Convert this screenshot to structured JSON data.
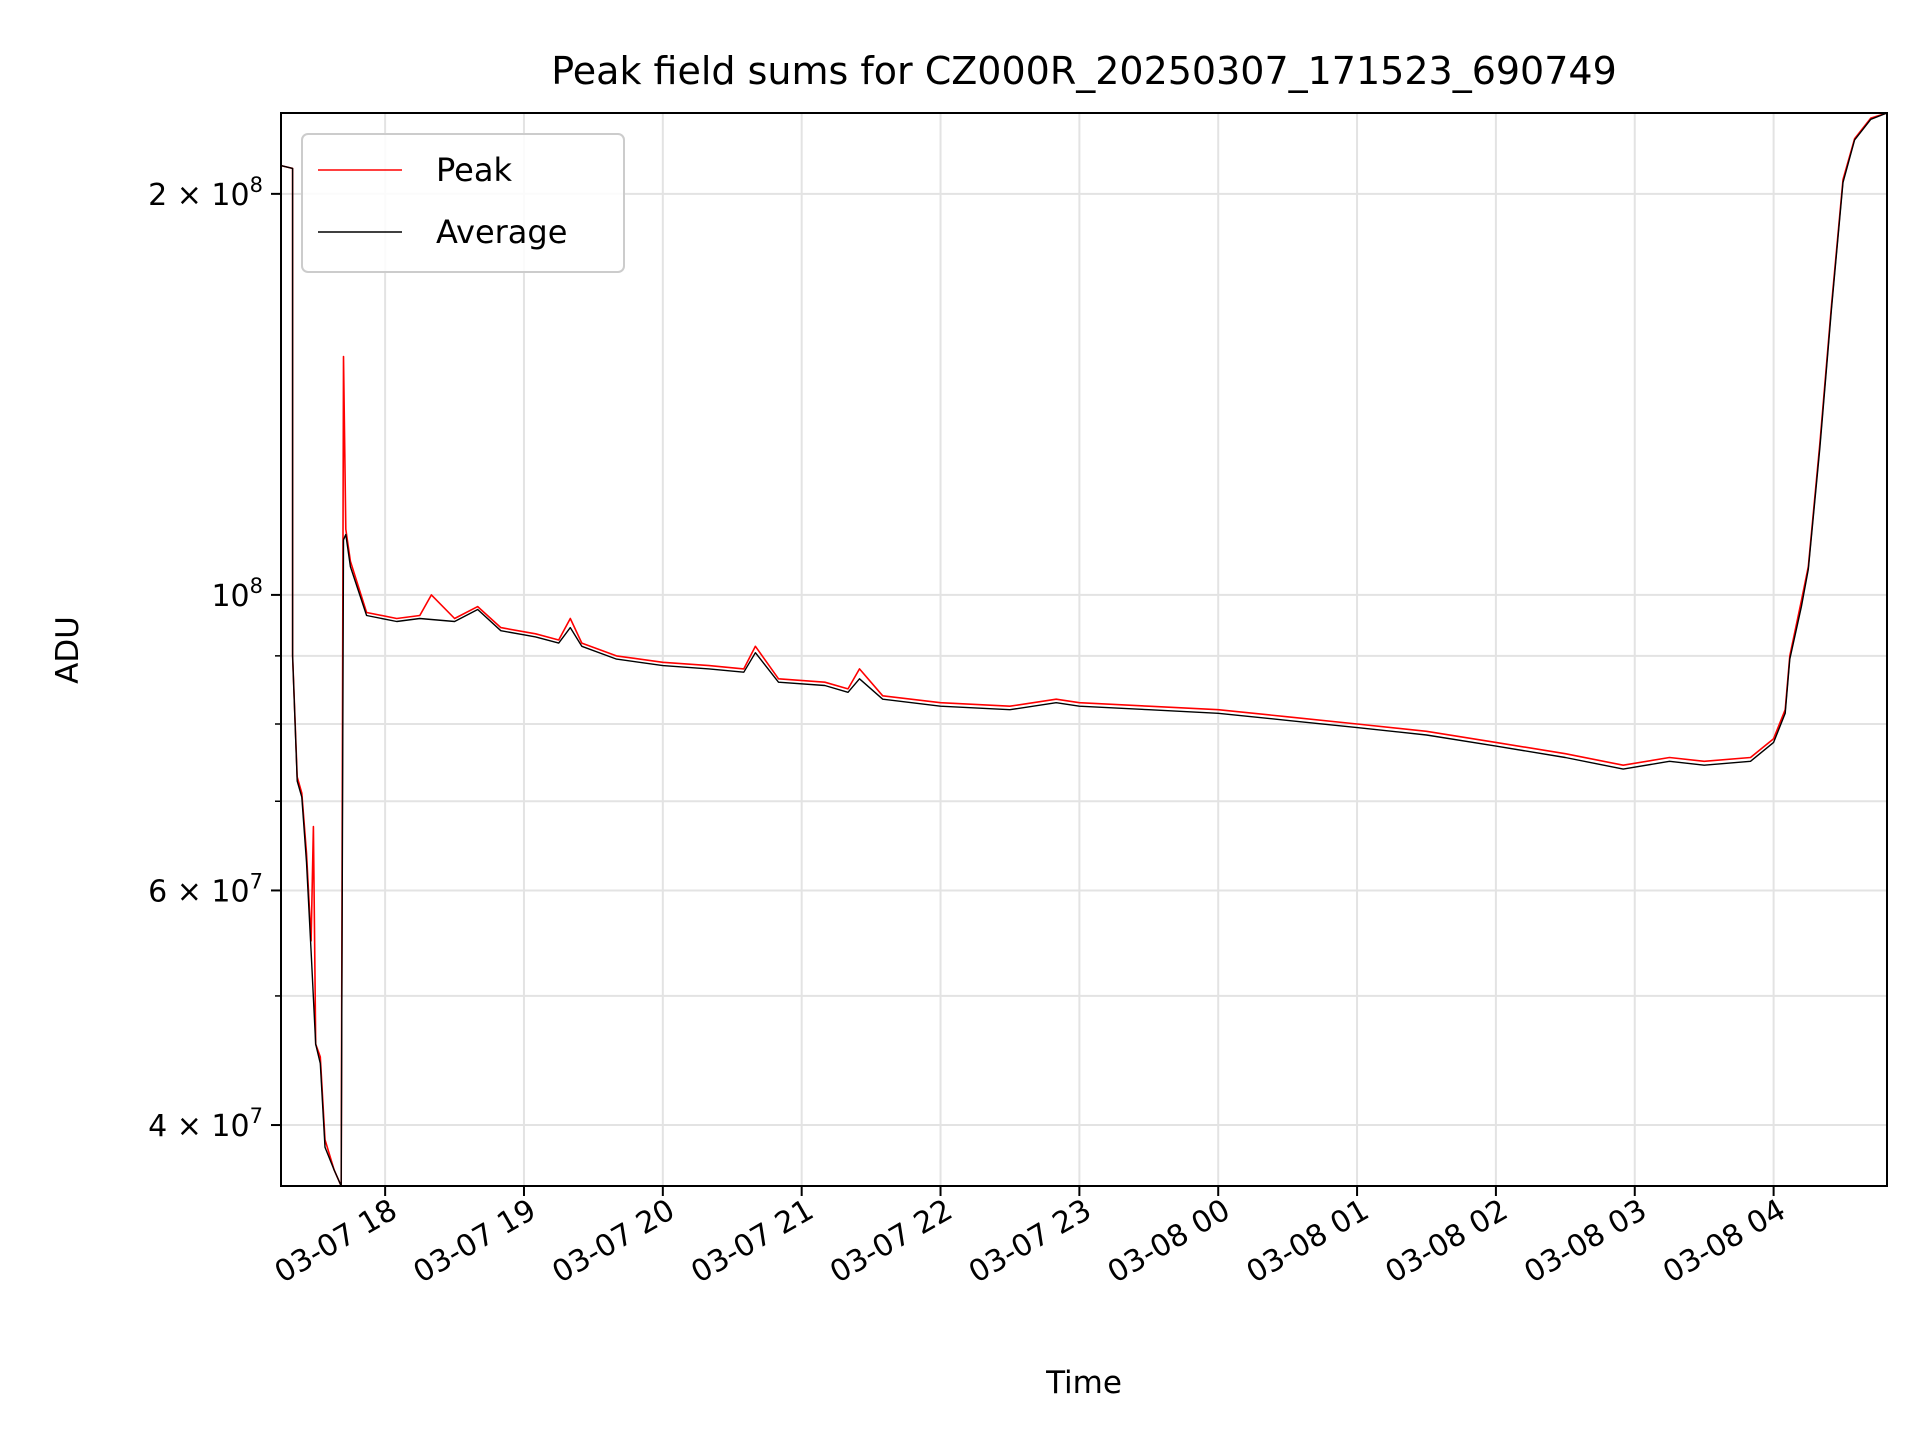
{
  "chart_data": {
    "type": "line",
    "title": "Peak field sums for CZ000R_20250307_171523_690749",
    "xlabel": "Time",
    "ylabel": "ADU",
    "yscale": "log",
    "ylim": [
      36000000,
      230000000
    ],
    "xlim": [
      "2025-03-07 17:15",
      "2025-03-08 04:49"
    ],
    "grid": true,
    "legend_position": "top-left",
    "x_ticks": [
      "03-07 18",
      "03-07 19",
      "03-07 20",
      "03-07 21",
      "03-07 22",
      "03-07 23",
      "03-08 00",
      "03-08 01",
      "03-08 02",
      "03-08 03",
      "03-08 04"
    ],
    "y_ticks": [
      {
        "base": "4 × 10",
        "exp": "7",
        "value": 40000000
      },
      {
        "base": "6 × 10",
        "exp": "7",
        "value": 60000000
      },
      {
        "base": "10",
        "exp": "8",
        "value": 100000000
      },
      {
        "base": "2 × 10",
        "exp": "8",
        "value": 200000000
      }
    ],
    "y_minor_ticks": [
      50000000,
      70000000,
      80000000,
      90000000
    ],
    "colors": {
      "peak": "#ff0000",
      "average": "#000000"
    },
    "series": [
      {
        "name": "Peak",
        "color": "#ff0000",
        "points": [
          [
            "2025-03-07 17:15",
            210000000
          ],
          [
            "2025-03-07 17:20",
            209000000
          ],
          [
            "2025-03-07 17:20",
            90000000
          ],
          [
            "2025-03-07 17:22",
            73000000
          ],
          [
            "2025-03-07 17:24",
            71000000
          ],
          [
            "2025-03-07 17:26",
            64000000
          ],
          [
            "2025-03-07 17:28",
            55000000
          ],
          [
            "2025-03-07 17:29",
            67000000
          ],
          [
            "2025-03-07 17:30",
            46000000
          ],
          [
            "2025-03-07 17:32",
            45000000
          ],
          [
            "2025-03-07 17:34",
            39000000
          ],
          [
            "2025-03-07 17:38",
            37000000
          ],
          [
            "2025-03-07 17:41",
            36000000
          ],
          [
            "2025-03-07 17:42",
            151000000
          ],
          [
            "2025-03-07 17:43",
            112000000
          ],
          [
            "2025-03-07 17:45",
            106000000
          ],
          [
            "2025-03-07 17:52",
            97000000
          ],
          [
            "2025-03-07 18:05",
            96000000
          ],
          [
            "2025-03-07 18:15",
            96500000
          ],
          [
            "2025-03-07 18:20",
            100000000
          ],
          [
            "2025-03-07 18:30",
            96000000
          ],
          [
            "2025-03-07 18:40",
            98000000
          ],
          [
            "2025-03-07 18:50",
            94500000
          ],
          [
            "2025-03-07 19:05",
            93500000
          ],
          [
            "2025-03-07 19:15",
            92500000
          ],
          [
            "2025-03-07 19:20",
            96000000
          ],
          [
            "2025-03-07 19:25",
            92000000
          ],
          [
            "2025-03-07 19:40",
            90000000
          ],
          [
            "2025-03-07 20:00",
            89000000
          ],
          [
            "2025-03-07 20:20",
            88500000
          ],
          [
            "2025-03-07 20:35",
            88000000
          ],
          [
            "2025-03-07 20:40",
            91500000
          ],
          [
            "2025-03-07 20:50",
            86500000
          ],
          [
            "2025-03-07 21:10",
            86000000
          ],
          [
            "2025-03-07 21:20",
            85000000
          ],
          [
            "2025-03-07 21:25",
            88000000
          ],
          [
            "2025-03-07 21:35",
            84000000
          ],
          [
            "2025-03-07 22:00",
            83000000
          ],
          [
            "2025-03-07 22:30",
            82500000
          ],
          [
            "2025-03-07 22:50",
            83500000
          ],
          [
            "2025-03-07 23:00",
            83000000
          ],
          [
            "2025-03-07 23:30",
            82500000
          ],
          [
            "2025-03-08 00:00",
            82000000
          ],
          [
            "2025-03-08 00:30",
            81000000
          ],
          [
            "2025-03-08 01:00",
            80000000
          ],
          [
            "2025-03-08 01:30",
            79000000
          ],
          [
            "2025-03-08 02:00",
            77500000
          ],
          [
            "2025-03-08 02:30",
            76000000
          ],
          [
            "2025-03-08 02:55",
            74500000
          ],
          [
            "2025-03-08 03:15",
            75500000
          ],
          [
            "2025-03-08 03:30",
            75000000
          ],
          [
            "2025-03-08 03:50",
            75500000
          ],
          [
            "2025-03-08 04:00",
            78000000
          ],
          [
            "2025-03-08 04:05",
            82000000
          ],
          [
            "2025-03-08 04:07",
            90000000
          ],
          [
            "2025-03-08 04:12",
            99000000
          ],
          [
            "2025-03-08 04:15",
            105000000
          ],
          [
            "2025-03-08 04:20",
            130000000
          ],
          [
            "2025-03-08 04:25",
            165000000
          ],
          [
            "2025-03-08 04:30",
            205000000
          ],
          [
            "2025-03-08 04:35",
            220000000
          ],
          [
            "2025-03-08 04:42",
            228000000
          ],
          [
            "2025-03-08 04:49",
            230000000
          ]
        ]
      },
      {
        "name": "Average",
        "color": "#000000",
        "points": [
          [
            "2025-03-07 17:15",
            210000000
          ],
          [
            "2025-03-07 17:20",
            209000000
          ],
          [
            "2025-03-07 17:20",
            90000000
          ],
          [
            "2025-03-07 17:22",
            72500000
          ],
          [
            "2025-03-07 17:24",
            70500000
          ],
          [
            "2025-03-07 17:26",
            63000000
          ],
          [
            "2025-03-07 17:28",
            54000000
          ],
          [
            "2025-03-07 17:30",
            46000000
          ],
          [
            "2025-03-07 17:32",
            44500000
          ],
          [
            "2025-03-07 17:34",
            38500000
          ],
          [
            "2025-03-07 17:38",
            37000000
          ],
          [
            "2025-03-07 17:41",
            36000000
          ],
          [
            "2025-03-07 17:42",
            110000000
          ],
          [
            "2025-03-07 17:43",
            111000000
          ],
          [
            "2025-03-07 17:45",
            105000000
          ],
          [
            "2025-03-07 17:52",
            96500000
          ],
          [
            "2025-03-07 18:05",
            95500000
          ],
          [
            "2025-03-07 18:15",
            96000000
          ],
          [
            "2025-03-07 18:30",
            95500000
          ],
          [
            "2025-03-07 18:40",
            97500000
          ],
          [
            "2025-03-07 18:50",
            94000000
          ],
          [
            "2025-03-07 19:05",
            93000000
          ],
          [
            "2025-03-07 19:15",
            92000000
          ],
          [
            "2025-03-07 19:20",
            94500000
          ],
          [
            "2025-03-07 19:25",
            91500000
          ],
          [
            "2025-03-07 19:40",
            89500000
          ],
          [
            "2025-03-07 20:00",
            88500000
          ],
          [
            "2025-03-07 20:20",
            88000000
          ],
          [
            "2025-03-07 20:35",
            87500000
          ],
          [
            "2025-03-07 20:40",
            90500000
          ],
          [
            "2025-03-07 20:50",
            86000000
          ],
          [
            "2025-03-07 21:10",
            85500000
          ],
          [
            "2025-03-07 21:20",
            84500000
          ],
          [
            "2025-03-07 21:25",
            86500000
          ],
          [
            "2025-03-07 21:35",
            83500000
          ],
          [
            "2025-03-07 22:00",
            82500000
          ],
          [
            "2025-03-07 22:30",
            82000000
          ],
          [
            "2025-03-07 22:50",
            83000000
          ],
          [
            "2025-03-07 23:00",
            82500000
          ],
          [
            "2025-03-07 23:30",
            82000000
          ],
          [
            "2025-03-08 00:00",
            81500000
          ],
          [
            "2025-03-08 00:30",
            80500000
          ],
          [
            "2025-03-08 01:00",
            79500000
          ],
          [
            "2025-03-08 01:30",
            78500000
          ],
          [
            "2025-03-08 02:00",
            77000000
          ],
          [
            "2025-03-08 02:30",
            75500000
          ],
          [
            "2025-03-08 02:55",
            74000000
          ],
          [
            "2025-03-08 03:15",
            75000000
          ],
          [
            "2025-03-08 03:30",
            74500000
          ],
          [
            "2025-03-08 03:50",
            75000000
          ],
          [
            "2025-03-08 04:00",
            77500000
          ],
          [
            "2025-03-08 04:05",
            81500000
          ],
          [
            "2025-03-08 04:07",
            89500000
          ],
          [
            "2025-03-08 04:12",
            98000000
          ],
          [
            "2025-03-08 04:15",
            104500000
          ],
          [
            "2025-03-08 04:20",
            129000000
          ],
          [
            "2025-03-08 04:25",
            164000000
          ],
          [
            "2025-03-08 04:30",
            204000000
          ],
          [
            "2025-03-08 04:35",
            219500000
          ],
          [
            "2025-03-08 04:42",
            227500000
          ],
          [
            "2025-03-08 04:49",
            230000000
          ]
        ]
      }
    ]
  }
}
